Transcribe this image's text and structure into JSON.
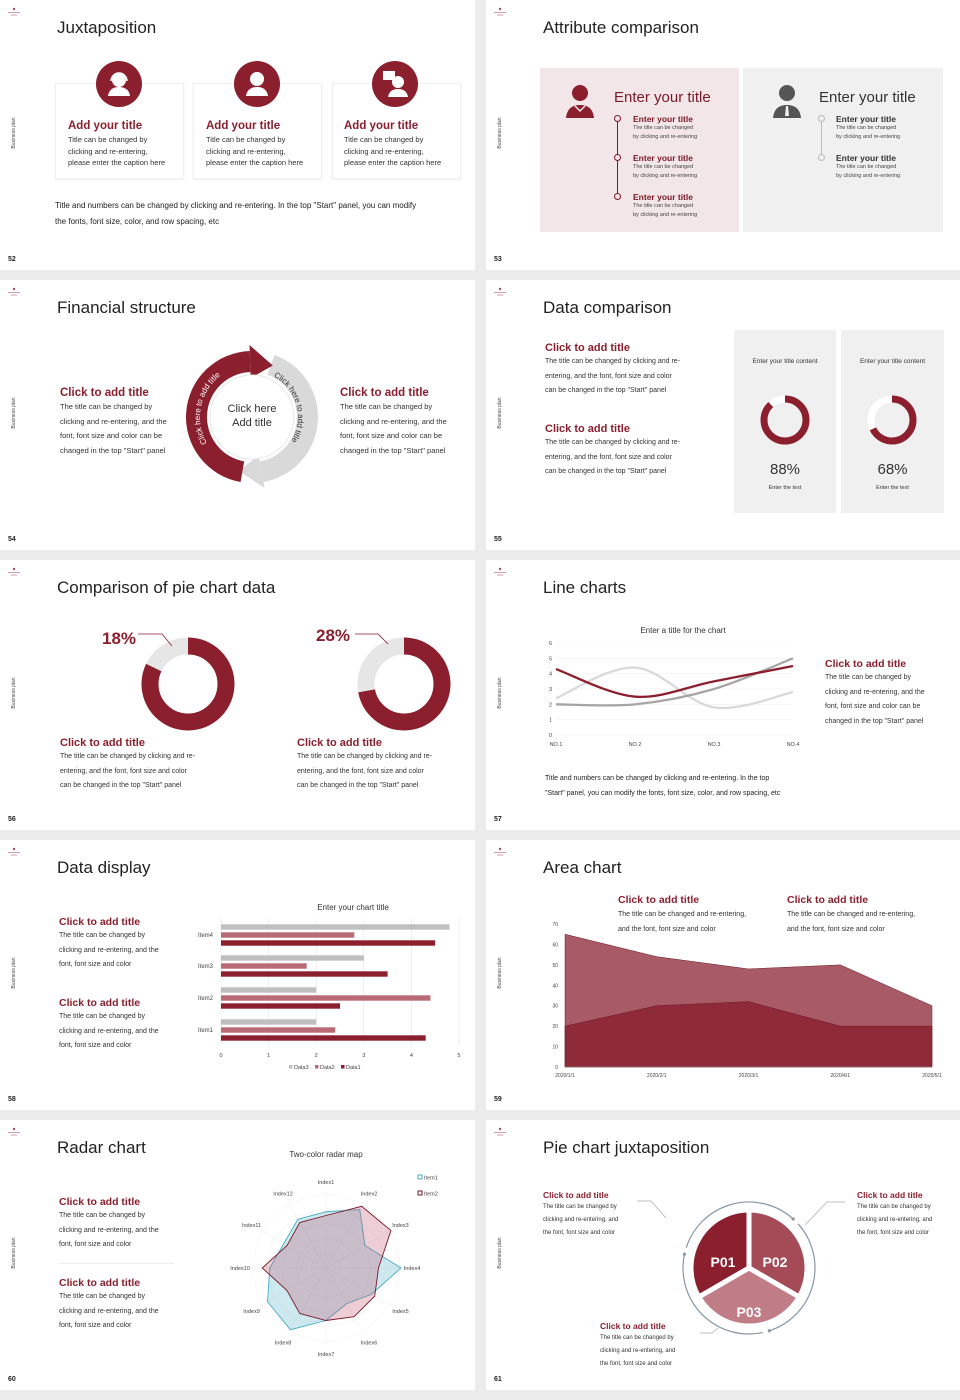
{
  "common": {
    "side_label": "Business plan",
    "accent": "#8b1f2e",
    "accent_mid": "#a85a66",
    "accent_light": "#c07d87",
    "gray": "#d9d9d9"
  },
  "slides": [
    {
      "page": "52",
      "title": "Juxtaposition",
      "cards": [
        {
          "icon": "headset-person-icon",
          "title": "Add your title",
          "lines": [
            "Title can be changed by",
            "clicking and re-entering,",
            "please enter the caption here"
          ]
        },
        {
          "icon": "person-icon",
          "title": "Add your title",
          "lines": [
            "Title can be changed by",
            "clicking and re-entering,",
            "please enter the caption here"
          ]
        },
        {
          "icon": "person-speech-icon",
          "title": "Add your title",
          "lines": [
            "Title can be changed by",
            "clicking and re-entering,",
            "please enter the caption here"
          ]
        }
      ],
      "footer": [
        "Title and numbers can be changed by clicking and re-entering. In the top \"Start\" panel, you can modify",
        "the fonts, font size, color, and row spacing, etc"
      ]
    },
    {
      "page": "53",
      "title": "Attribute comparison",
      "left": {
        "heading": "Enter your title",
        "items": [
          {
            "title": "Enter your title",
            "lines": [
              "The title can be changed",
              "by clicking and re-entering"
            ]
          },
          {
            "title": "Enter your title",
            "lines": [
              "The title can be changed",
              "by clicking and re-entering"
            ]
          },
          {
            "title": "Enter your title",
            "lines": [
              "The title can be changed",
              "by clicking and re-entering"
            ]
          }
        ]
      },
      "right": {
        "heading": "Enter your title",
        "items": [
          {
            "title": "Enter your title",
            "lines": [
              "The title can be changed",
              "by clicking and re-entering"
            ]
          },
          {
            "title": "Enter your title",
            "lines": [
              "The title can be changed",
              "by clicking and re-entering"
            ]
          }
        ]
      }
    },
    {
      "page": "54",
      "title": "Financial structure",
      "left": {
        "title": "Click to add title",
        "lines": [
          "The title can be changed by",
          "clicking and re-entering, and the",
          "font, font size and color can be",
          "changed in the top \"Start\" panel"
        ]
      },
      "right": {
        "title": "Click to add title",
        "lines": [
          "The title can be changed by",
          "clicking and re-entering, and the",
          "font, font size and color can be",
          "changed in the top \"Start\" panel"
        ]
      },
      "center": [
        "Click here",
        "Add title"
      ],
      "arc_red": "Click here to add title",
      "arc_gray": "Click here to add title"
    },
    {
      "page": "55",
      "title": "Data comparison",
      "blocks": [
        {
          "title": "Click to add title",
          "lines": [
            "The title can be changed by clicking and re-",
            "entering, and the font, font size and color",
            "can be changed in the top \"Start\" panel"
          ]
        },
        {
          "title": "Click to add title",
          "lines": [
            "The title can be changed by clicking and re-",
            "entering, and the font, font size and color",
            "can be changed in the top \"Start\" panel"
          ]
        }
      ],
      "panels": [
        {
          "heading": "Enter your title content",
          "value": "88%",
          "percent": 88,
          "caption": "Enter the text"
        },
        {
          "heading": "Enter your title content",
          "value": "68%",
          "percent": 68,
          "caption": "Enter the text"
        }
      ]
    },
    {
      "page": "56",
      "title": "Comparison of pie chart data",
      "donuts": [
        {
          "label": "18%",
          "percent": 18,
          "title": "Click to add title",
          "lines": [
            "The title can be changed by clicking and re-",
            "entering, and the font, font size and color",
            "can be changed in the top \"Start\" panel"
          ]
        },
        {
          "label": "28%",
          "percent": 28,
          "title": "Click to add title",
          "lines": [
            "The title can be changed by clicking and re-",
            "entering, and the font, font size and color",
            "can be changed in the top \"Start\" panel"
          ]
        }
      ]
    },
    {
      "page": "57",
      "title": "Line charts",
      "side": {
        "title": "Click to add title",
        "lines": [
          "The title can be changed by",
          "clicking and re-entering, and the",
          "font, font size and color can be",
          "changed in the top \"Start\" panel"
        ]
      },
      "footer": [
        "Title and numbers can be changed by clicking and re-entering. In the top",
        "\"Start\" panel, you can modify the fonts, font size, color, and row spacing, etc"
      ]
    },
    {
      "page": "58",
      "title": "Data display",
      "blocks": [
        {
          "title": "Click to add title",
          "lines": [
            "The title can be changed by",
            "clicking and re-entering, and the",
            "font, font size and color"
          ]
        },
        {
          "title": "Click to add title",
          "lines": [
            "The title can be changed by",
            "clicking and re-entering, and the",
            "font, font size and color"
          ]
        }
      ]
    },
    {
      "page": "59",
      "title": "Area chart",
      "blocks": [
        {
          "title": "Click to add title",
          "lines": [
            "The title can be changed and re-entering,",
            "and the font, font size and color"
          ]
        },
        {
          "title": "Click to add title",
          "lines": [
            "The title can be changed and re-entering,",
            "and the font, font size and color"
          ]
        }
      ]
    },
    {
      "page": "60",
      "title": "Radar chart",
      "blocks": [
        {
          "title": "Click to add title",
          "lines": [
            "The title can be changed by",
            "clicking and re-entering, and the",
            "font, font size and color"
          ]
        },
        {
          "title": "Click to add title",
          "lines": [
            "The title can be changed by",
            "clicking and re-entering, and the",
            "font, font size and color"
          ]
        }
      ]
    },
    {
      "page": "61",
      "title": "Pie chart juxtaposition",
      "segments": [
        "P01",
        "P02",
        "P03"
      ],
      "blocks": [
        {
          "title": "Click to add title",
          "lines": [
            "The title can be changed by",
            "clicking and re-entering, and",
            "the font, font size and color"
          ]
        },
        {
          "title": "Click to add title",
          "lines": [
            "The title can be changed by",
            "clicking and re-entering, and",
            "the font, font size and color"
          ]
        },
        {
          "title": "Click to add title",
          "lines": [
            "The title can be changed by",
            "clicking and re-entering, and",
            "the font, font size and color"
          ]
        }
      ]
    }
  ],
  "chart_data": [
    {
      "type": "line",
      "title": "Enter a title for the chart",
      "categories": [
        "NO.1",
        "NO.2",
        "NO.3",
        "NO.4"
      ],
      "yticks": [
        "0",
        "1",
        "2",
        "3",
        "4",
        "5",
        "6"
      ],
      "ylim": [
        0,
        6
      ],
      "grid": true,
      "series": [
        {
          "values": [
            4.3,
            2.5,
            3.5,
            4.5
          ],
          "color": "#8b1f2e"
        },
        {
          "values": [
            2.4,
            4.4,
            1.8,
            2.8
          ],
          "color": "#d9d9d9"
        },
        {
          "values": [
            2.0,
            2.0,
            3.0,
            5.0
          ],
          "color": "#a6a6a6"
        }
      ]
    },
    {
      "type": "bar",
      "orientation": "horizontal",
      "title": "Enter your chart title",
      "categories": [
        "Item1",
        "Item2",
        "Item3",
        "Item4"
      ],
      "xticks": [
        "0",
        "1",
        "2",
        "3",
        "4",
        "5"
      ],
      "xlim": [
        0,
        5
      ],
      "grid": true,
      "legend": "bottom",
      "series": [
        {
          "name": "Data3",
          "values": [
            2,
            2,
            3,
            4.8
          ],
          "color": "#bfbfbf"
        },
        {
          "name": "Data2",
          "values": [
            2.4,
            4.4,
            1.8,
            2.8
          ],
          "color": "#b86a75"
        },
        {
          "name": "Data1",
          "values": [
            4.3,
            2.5,
            3.5,
            4.5
          ],
          "color": "#8b1f2e"
        }
      ]
    },
    {
      "type": "area",
      "categories": [
        "2020/1/1",
        "2020/2/1",
        "2020/3/1",
        "2020/4/1",
        "2020/5/1"
      ],
      "yticks": [
        "0",
        "10",
        "20",
        "30",
        "40",
        "50",
        "60",
        "70"
      ],
      "ylim": [
        0,
        70
      ],
      "series": [
        {
          "values": [
            65,
            54,
            48,
            50,
            30
          ],
          "color": "#a85a66"
        },
        {
          "values": [
            20,
            30,
            32,
            20,
            20
          ],
          "color": "#8f2a38"
        }
      ]
    },
    {
      "type": "radar",
      "title": "Two-color radar map",
      "categories": [
        "Index1",
        "Index2",
        "Index3",
        "Index4",
        "Index5",
        "Index6",
        "Index7",
        "Index8",
        "Index9",
        "Index10",
        "Index11",
        "Index12"
      ],
      "rlim": [
        0,
        10
      ],
      "legend": "top-right",
      "series": [
        {
          "name": "Item1",
          "values": [
            7.5,
            9,
            6,
            10,
            7,
            5.5,
            7,
            9.5,
            9,
            7.5,
            6.5,
            7.5
          ],
          "color": "#4bacc6"
        },
        {
          "name": "Item2",
          "values": [
            7,
            9.5,
            10,
            7,
            7.5,
            7.5,
            7,
            7,
            6,
            8.5,
            6,
            7
          ],
          "color": "#7a1a28"
        }
      ]
    }
  ]
}
